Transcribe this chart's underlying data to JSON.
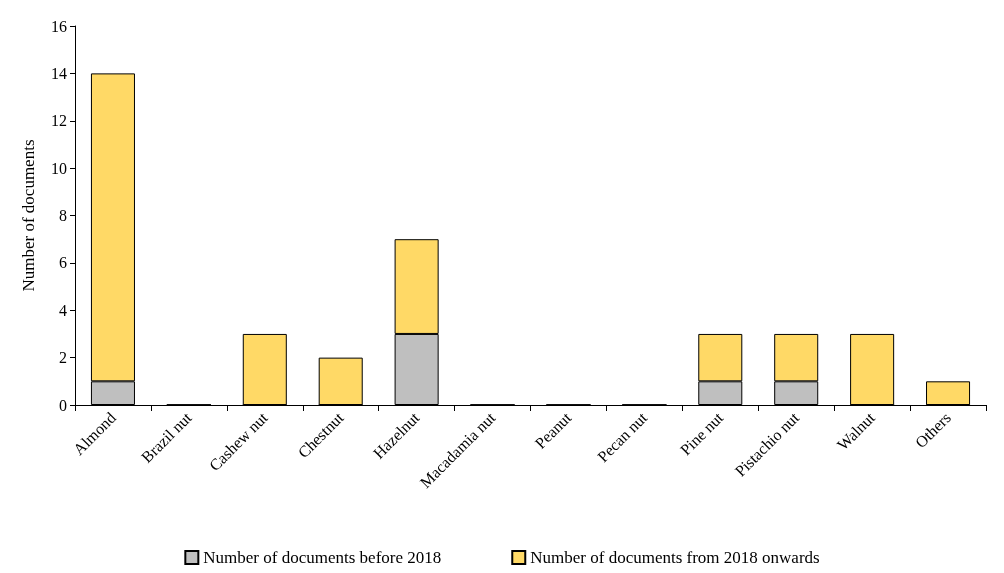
{
  "chart_data": {
    "type": "bar",
    "ylabel": "Number of documents",
    "stacked": true,
    "grid": false,
    "legend": "bottom",
    "categories": [
      "Almond",
      "Brazil nut",
      "Cashew nut",
      "Chestnut",
      "Hazelnut",
      "Macadamia nut",
      "Peanut",
      "Pecan nut",
      "Pine nut",
      "Pistachio nut",
      "Walnut",
      "Others"
    ],
    "series": [
      {
        "name": "Number of documents before 2018",
        "color": "#bfbfbf",
        "values": [
          1,
          0,
          0,
          0,
          3,
          0,
          0,
          0,
          1,
          1,
          0,
          0
        ]
      },
      {
        "name": "Number of documents from 2018 onwards",
        "color": "#ffd966",
        "values": [
          13,
          0,
          3,
          2,
          4,
          0,
          0,
          0,
          2,
          2,
          3,
          1
        ]
      }
    ],
    "ylim": [
      0,
      16
    ],
    "yticks": [
      0,
      2,
      4,
      6,
      8,
      10,
      12,
      14,
      16
    ]
  }
}
